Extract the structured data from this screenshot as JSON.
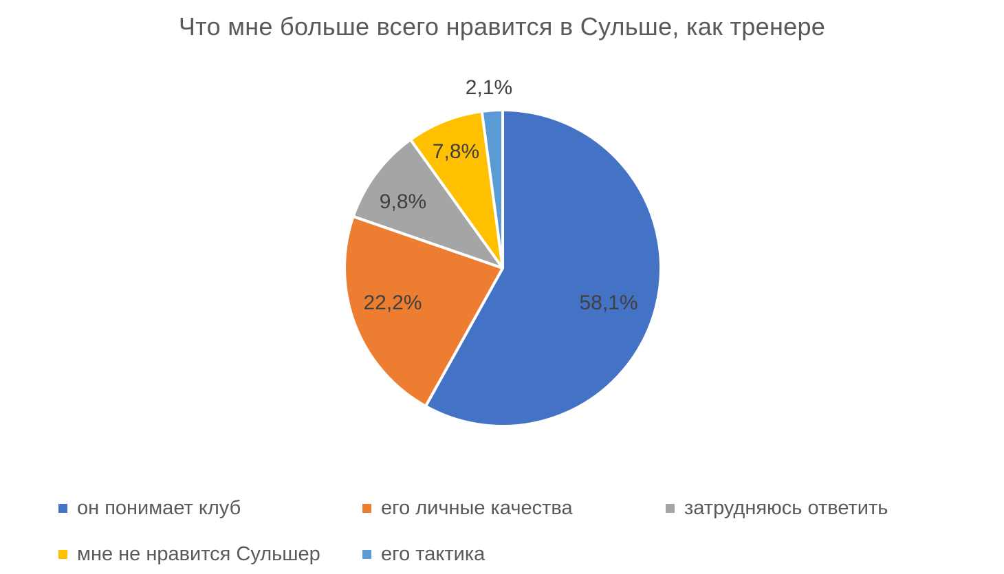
{
  "chart_data": {
    "type": "pie",
    "title": "Что мне больше всего нравится в Сульше, как тренере",
    "slices": [
      {
        "name": "он понимает клуб",
        "value": 58.1,
        "label": "58,1%",
        "color": "#4472C4"
      },
      {
        "name": "его личные качества",
        "value": 22.2,
        "label": "22,2%",
        "color": "#ED7D31"
      },
      {
        "name": "затрудняюсь ответить",
        "value": 9.8,
        "label": "9,8%",
        "color": "#A5A5A5"
      },
      {
        "name": "мне не нравится Сульшер",
        "value": 7.8,
        "label": "7,8%",
        "color": "#FFC000"
      },
      {
        "name": "его тактика",
        "value": 2.1,
        "label": "2,1%",
        "color": "#5B9BD5"
      }
    ],
    "legend_position": "bottom"
  }
}
